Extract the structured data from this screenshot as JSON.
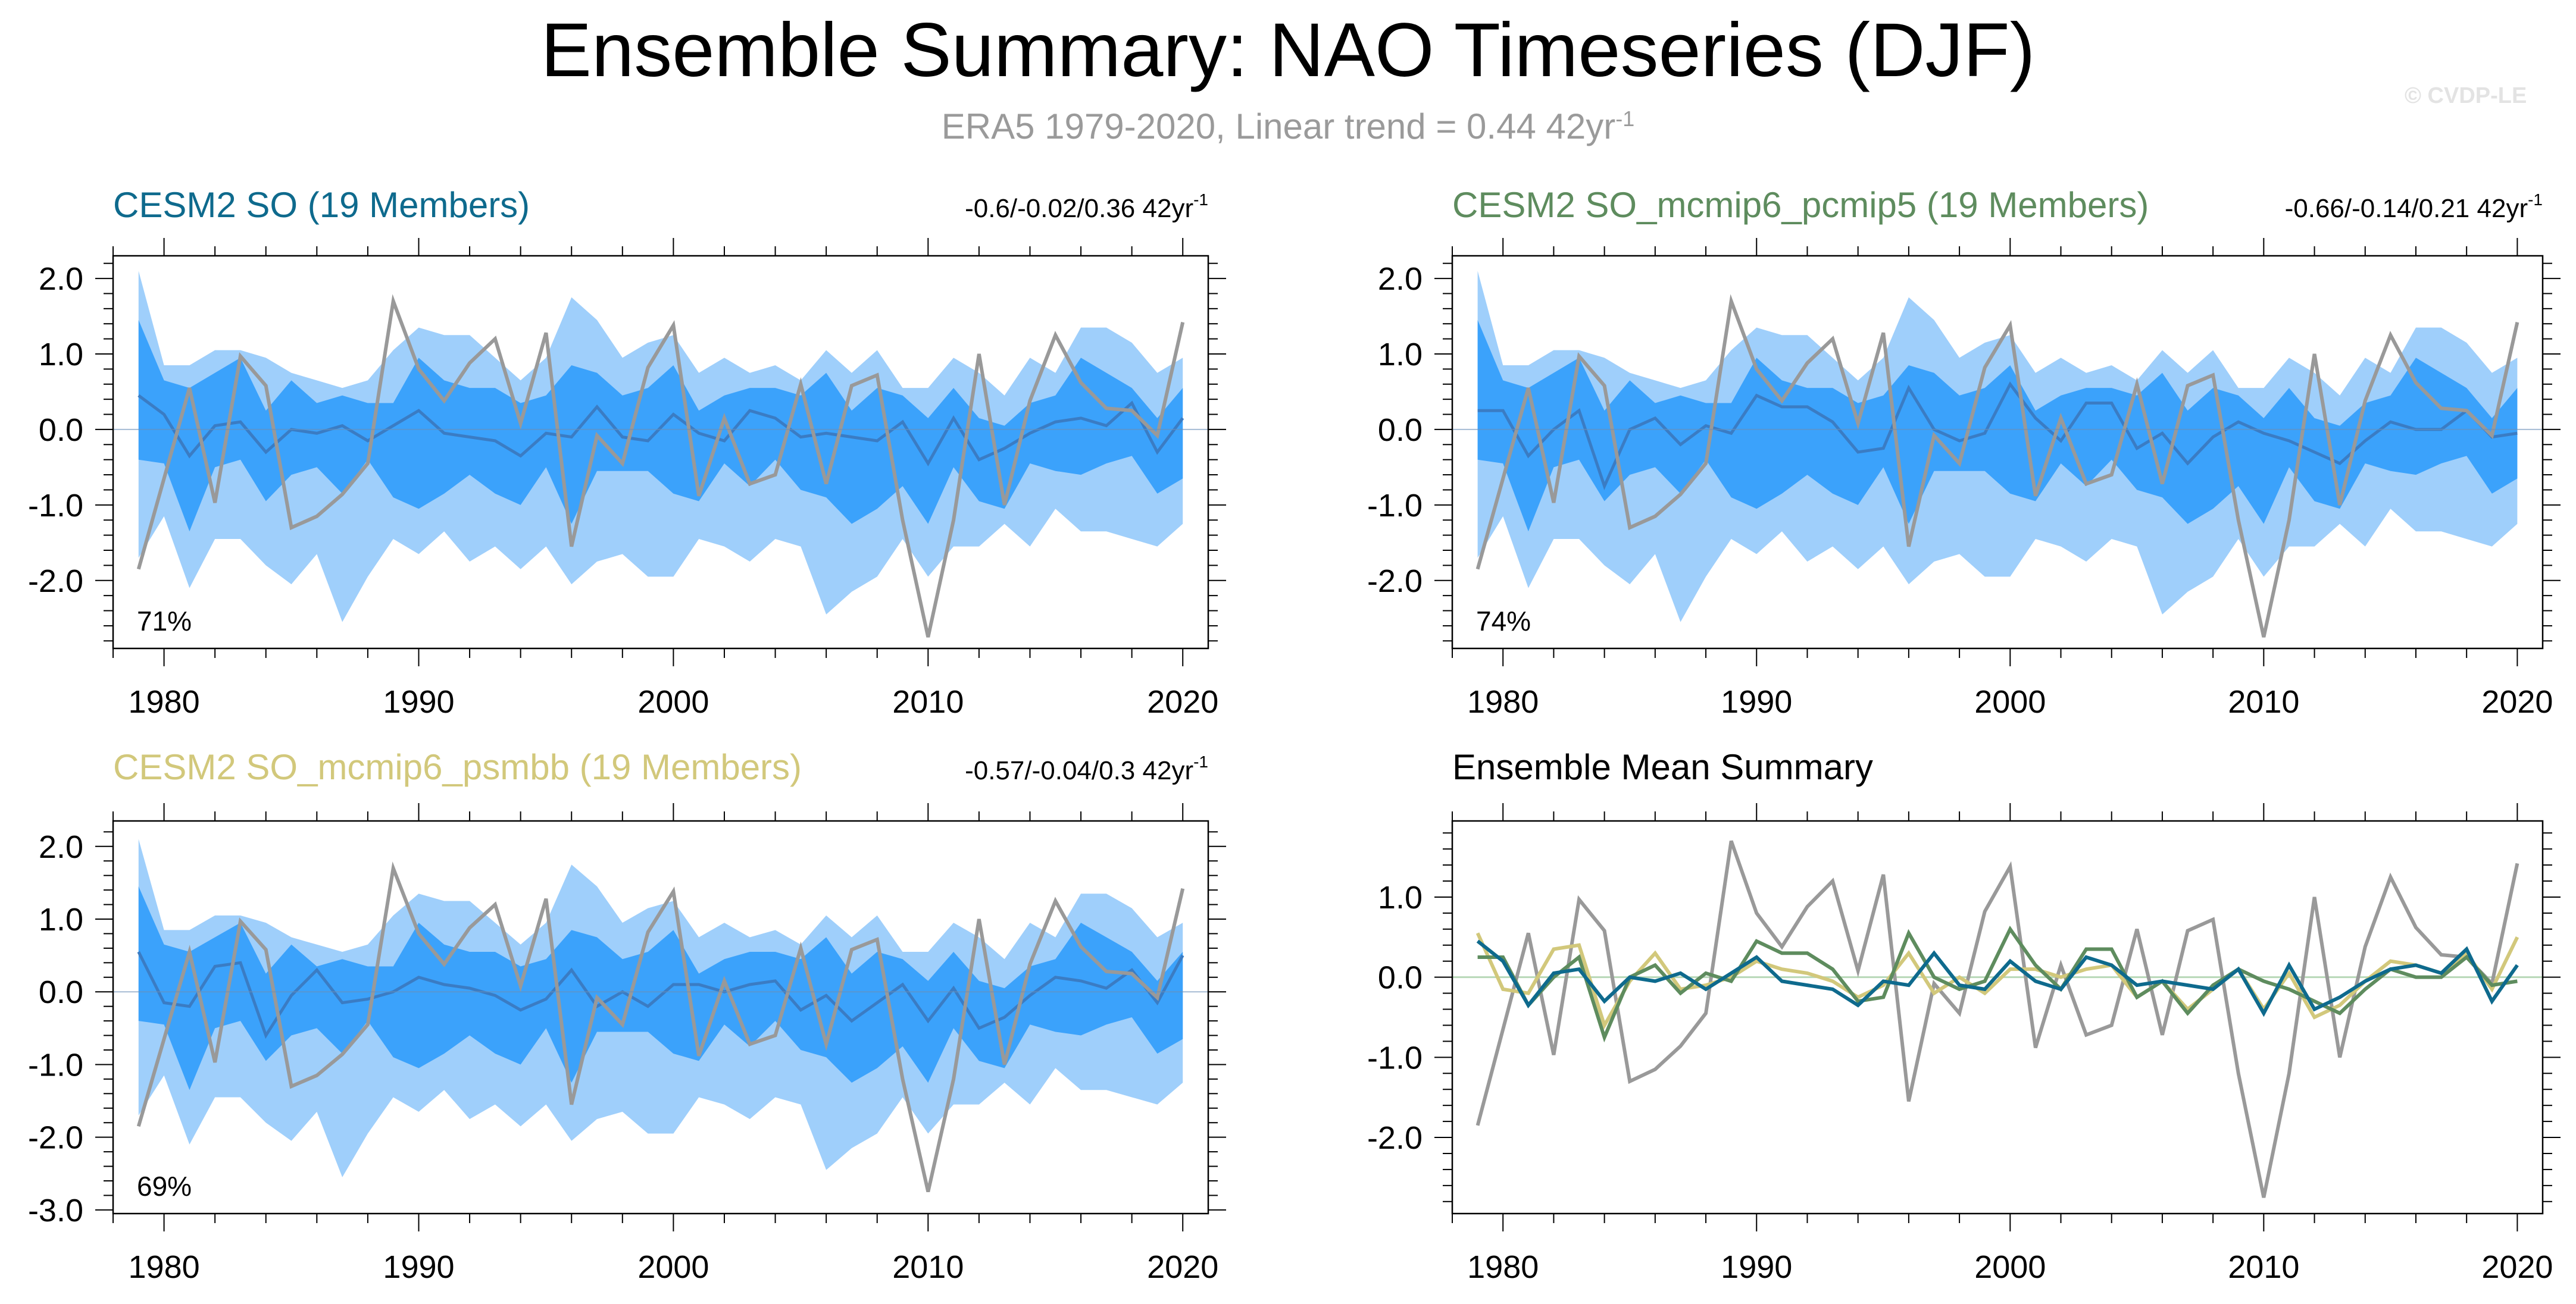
{
  "title": "Ensemble Summary: NAO Timeseries (DJF)",
  "subtitle_prefix": "ERA5 1979-2020, Linear trend = 0.44 42yr",
  "subtitle_exp": "-1",
  "copyright": "© CVDP-LE",
  "colors": {
    "outer_band": "#9fcffb",
    "inner_band": "#3ba2fb",
    "ens_mean": "#3a7cc4",
    "obs": "#999999",
    "so": "#0e6a8d",
    "pcmip5": "#5e8c5e",
    "psmbb": "#d2c87b"
  },
  "chart_data": [
    {
      "type": "area",
      "title": "CESM2 SO (19 Members)",
      "stats": "-0.6/-0.02/0.36 42yr",
      "stats_exp": "-1",
      "percent": "71%",
      "xlim": [
        1978,
        2021
      ],
      "ylim": [
        -2.9,
        2.3
      ],
      "yticks": [
        2.0,
        1.0,
        0.0,
        -1.0,
        -2.0
      ],
      "ytick_labels": [
        "2.0",
        "1.0",
        "0.0",
        "-1.0",
        "-2.0"
      ],
      "xticks": [
        1980,
        1990,
        2000,
        2010,
        2020
      ],
      "xtick_labels": [
        "1980",
        "1990",
        "2000",
        "2010",
        "2020"
      ],
      "ensemble_mean": [
        0.45,
        0.2,
        -0.35,
        0.05,
        0.1,
        -0.3,
        0.0,
        -0.05,
        0.05,
        -0.15,
        0.05,
        0.25,
        -0.05,
        -0.1,
        -0.15,
        -0.35,
        -0.05,
        -0.1,
        0.3,
        -0.1,
        -0.15,
        0.2,
        -0.05,
        -0.15,
        0.25,
        0.15,
        -0.1,
        -0.05,
        -0.1,
        -0.15,
        0.1,
        -0.45,
        0.15,
        -0.4,
        -0.25,
        -0.05,
        0.1,
        0.15,
        0.05,
        0.35,
        -0.3,
        0.15
      ]
    },
    {
      "type": "area",
      "title": "CESM2 SO_mcmip6_pcmip5 (19 Members)",
      "stats": "-0.66/-0.14/0.21 42yr",
      "stats_exp": "-1",
      "percent": "74%",
      "xlim": [
        1978,
        2021
      ],
      "ylim": [
        -2.9,
        2.3
      ],
      "yticks": [
        2.0,
        1.0,
        0.0,
        -1.0,
        -2.0
      ],
      "ytick_labels": [
        "2.0",
        "1.0",
        "0.0",
        "-1.0",
        "-2.0"
      ],
      "xticks": [
        1980,
        1990,
        2000,
        2010,
        2020
      ],
      "xtick_labels": [
        "1980",
        "1990",
        "2000",
        "2010",
        "2020"
      ],
      "ensemble_mean": [
        0.25,
        0.25,
        -0.35,
        0.0,
        0.25,
        -0.75,
        0.0,
        0.15,
        -0.2,
        0.05,
        -0.05,
        0.45,
        0.3,
        0.3,
        0.1,
        -0.3,
        -0.25,
        0.55,
        0.0,
        -0.15,
        -0.05,
        0.6,
        0.15,
        -0.15,
        0.35,
        0.35,
        -0.25,
        -0.05,
        -0.45,
        -0.1,
        0.1,
        -0.05,
        -0.15,
        -0.3,
        -0.45,
        -0.15,
        0.1,
        0.0,
        0.0,
        0.25,
        -0.1,
        -0.05
      ]
    },
    {
      "type": "area",
      "title": "CESM2 SO_mcmip6_psmbb (19 Members)",
      "stats": "-0.57/-0.04/0.3 42yr",
      "stats_exp": "-1",
      "percent": "69%",
      "xlim": [
        1978,
        2021
      ],
      "ylim": [
        -3.05,
        2.35
      ],
      "yticks": [
        2.0,
        1.0,
        0.0,
        -1.0,
        -2.0,
        -3.0
      ],
      "ytick_labels": [
        "2.0",
        "1.0",
        "0.0",
        "-1.0",
        "-2.0",
        "-3.0"
      ],
      "xticks": [
        1980,
        1990,
        2000,
        2010,
        2020
      ],
      "xtick_labels": [
        "1980",
        "1990",
        "2000",
        "2010",
        "2020"
      ],
      "ensemble_mean": [
        0.55,
        -0.15,
        -0.2,
        0.35,
        0.4,
        -0.6,
        -0.05,
        0.3,
        -0.15,
        -0.1,
        0.0,
        0.2,
        0.1,
        0.05,
        -0.05,
        -0.25,
        -0.1,
        0.3,
        -0.2,
        0.0,
        -0.2,
        0.1,
        0.1,
        0.0,
        0.1,
        0.15,
        -0.25,
        -0.05,
        -0.4,
        -0.15,
        0.1,
        -0.4,
        0.05,
        -0.5,
        -0.35,
        -0.05,
        0.2,
        0.15,
        0.05,
        0.3,
        -0.15,
        0.5
      ]
    },
    {
      "type": "line",
      "title": "Ensemble Mean Summary",
      "xlim": [
        1978,
        2021
      ],
      "ylim": [
        -2.95,
        1.95
      ],
      "yticks": [
        1.0,
        0.0,
        -1.0,
        -2.0
      ],
      "ytick_labels": [
        "1.0",
        "0.0",
        "-1.0",
        "-2.0"
      ],
      "xticks": [
        1980,
        1990,
        2000,
        2010,
        2020
      ],
      "xtick_labels": [
        "1980",
        "1990",
        "2000",
        "2010",
        "2020"
      ]
    }
  ],
  "shared_series": {
    "years": [
      1979,
      1980,
      1981,
      1982,
      1983,
      1984,
      1985,
      1986,
      1987,
      1988,
      1989,
      1990,
      1991,
      1992,
      1993,
      1994,
      1995,
      1996,
      1997,
      1998,
      1999,
      2000,
      2001,
      2002,
      2003,
      2004,
      2005,
      2006,
      2007,
      2008,
      2009,
      2010,
      2011,
      2012,
      2013,
      2014,
      2015,
      2016,
      2017,
      2018,
      2019,
      2020
    ],
    "obs": [
      -1.85,
      -0.65,
      0.55,
      -0.97,
      0.97,
      0.58,
      -1.3,
      -1.15,
      -0.86,
      -0.45,
      1.7,
      0.8,
      0.38,
      0.88,
      1.2,
      0.08,
      1.28,
      -1.55,
      -0.08,
      -0.45,
      0.82,
      1.38,
      -0.88,
      0.15,
      -0.72,
      -0.6,
      0.6,
      -0.72,
      0.58,
      0.72,
      -1.2,
      -2.75,
      -1.2,
      1.0,
      -1.0,
      0.38,
      1.25,
      0.62,
      0.28,
      0.25,
      -0.08,
      1.42
    ],
    "band_outer_upper": [
      2.1,
      0.85,
      0.85,
      1.05,
      1.05,
      0.95,
      0.75,
      0.65,
      0.55,
      0.65,
      1.05,
      1.35,
      1.25,
      1.25,
      0.95,
      0.65,
      0.95,
      1.75,
      1.45,
      0.95,
      1.15,
      1.25,
      0.75,
      0.95,
      0.75,
      0.85,
      0.65,
      1.05,
      0.75,
      1.05,
      0.55,
      0.55,
      0.95,
      0.75,
      0.45,
      0.95,
      0.75,
      1.35,
      1.35,
      1.15,
      0.75,
      0.95
    ],
    "band_inner_upper": [
      1.45,
      0.65,
      0.55,
      0.75,
      0.95,
      0.25,
      0.65,
      0.35,
      0.45,
      0.35,
      0.35,
      0.95,
      0.65,
      0.55,
      0.55,
      0.35,
      0.45,
      0.85,
      0.75,
      0.45,
      0.55,
      0.85,
      0.25,
      0.45,
      0.55,
      0.55,
      0.45,
      0.75,
      0.25,
      0.55,
      0.45,
      0.15,
      0.55,
      0.15,
      0.05,
      0.35,
      0.45,
      0.95,
      0.75,
      0.55,
      0.15,
      0.55
    ],
    "band_inner_lower": [
      -0.4,
      -0.45,
      -1.35,
      -0.5,
      -0.4,
      -0.95,
      -0.6,
      -0.5,
      -0.85,
      -0.4,
      -0.9,
      -1.05,
      -0.85,
      -0.6,
      -0.85,
      -1.0,
      -0.5,
      -1.25,
      -0.55,
      -0.55,
      -0.55,
      -0.85,
      -0.95,
      -0.45,
      -0.75,
      -0.4,
      -0.8,
      -0.9,
      -1.25,
      -1.05,
      -0.75,
      -1.25,
      -0.5,
      -0.95,
      -1.05,
      -0.45,
      -0.55,
      -0.6,
      -0.45,
      -0.35,
      -0.85,
      -0.65
    ],
    "band_outer_lower": [
      -1.7,
      -1.15,
      -2.1,
      -1.45,
      -1.45,
      -1.8,
      -2.05,
      -1.65,
      -2.55,
      -1.95,
      -1.45,
      -1.65,
      -1.35,
      -1.75,
      -1.55,
      -1.85,
      -1.55,
      -2.05,
      -1.75,
      -1.65,
      -1.95,
      -1.95,
      -1.45,
      -1.55,
      -1.75,
      -1.45,
      -1.55,
      -2.45,
      -2.15,
      -1.95,
      -1.45,
      -1.95,
      -1.55,
      -1.55,
      -1.25,
      -1.55,
      -1.05,
      -1.35,
      -1.35,
      -1.45,
      -1.55,
      -1.25
    ]
  }
}
